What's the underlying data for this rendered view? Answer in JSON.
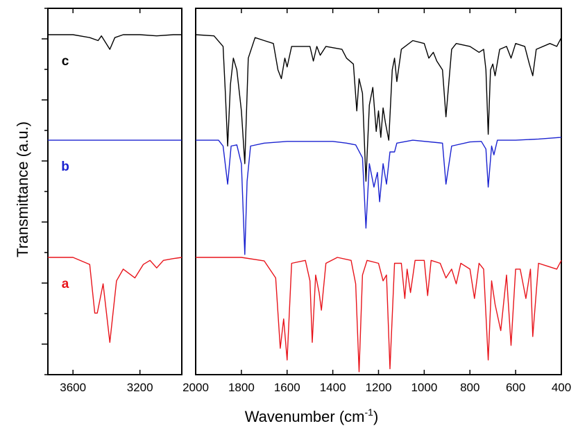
{
  "chart_data": {
    "type": "line",
    "xlabel": "Wavenumber (cm",
    "xlabel_sup": "-1",
    "xlabel_end": ")",
    "ylabel": "Transmittance (a.u.)",
    "panels": [
      {
        "name": "left",
        "xlim": [
          3750,
          2950
        ],
        "xticks": [
          3600,
          3200
        ]
      },
      {
        "name": "right",
        "xlim": [
          2000,
          400
        ],
        "xticks": [
          2000,
          1800,
          1600,
          1400,
          1200,
          1000,
          800,
          600,
          400
        ]
      }
    ],
    "series": [
      {
        "label": "a",
        "color": "#e8141b",
        "points": [
          [
            3750,
            0
          ],
          [
            3600,
            0
          ],
          [
            3500,
            -0.12
          ],
          [
            3470,
            -0.95
          ],
          [
            3455,
            -0.95
          ],
          [
            3420,
            -0.45
          ],
          [
            3380,
            -1.45
          ],
          [
            3340,
            -0.4
          ],
          [
            3300,
            -0.2
          ],
          [
            3230,
            -0.35
          ],
          [
            3180,
            -0.12
          ],
          [
            3140,
            -0.05
          ],
          [
            3100,
            -0.18
          ],
          [
            3060,
            -0.05
          ],
          [
            3000,
            -0.02
          ],
          [
            2950,
            0
          ],
          [
            2000,
            0
          ],
          [
            1800,
            0
          ],
          [
            1700,
            -0.06
          ],
          [
            1650,
            -0.35
          ],
          [
            1630,
            -1.55
          ],
          [
            1615,
            -1.05
          ],
          [
            1600,
            -1.75
          ],
          [
            1580,
            -0.1
          ],
          [
            1520,
            -0.05
          ],
          [
            1500,
            -0.4
          ],
          [
            1490,
            -1.45
          ],
          [
            1475,
            -0.3
          ],
          [
            1460,
            -0.6
          ],
          [
            1450,
            -0.9
          ],
          [
            1430,
            -0.1
          ],
          [
            1380,
            0
          ],
          [
            1320,
            -0.05
          ],
          [
            1300,
            -0.45
          ],
          [
            1285,
            -1.95
          ],
          [
            1270,
            -0.3
          ],
          [
            1250,
            -0.05
          ],
          [
            1200,
            -0.1
          ],
          [
            1180,
            -0.4
          ],
          [
            1165,
            -0.3
          ],
          [
            1150,
            -1.9
          ],
          [
            1130,
            -0.1
          ],
          [
            1100,
            -0.1
          ],
          [
            1085,
            -0.7
          ],
          [
            1075,
            -0.2
          ],
          [
            1060,
            -0.6
          ],
          [
            1040,
            -0.05
          ],
          [
            1000,
            -0.05
          ],
          [
            985,
            -0.65
          ],
          [
            970,
            -0.05
          ],
          [
            930,
            -0.1
          ],
          [
            905,
            -0.35
          ],
          [
            880,
            -0.2
          ],
          [
            860,
            -0.45
          ],
          [
            840,
            -0.1
          ],
          [
            800,
            -0.2
          ],
          [
            780,
            -0.7
          ],
          [
            760,
            -0.1
          ],
          [
            740,
            -0.2
          ],
          [
            720,
            -1.75
          ],
          [
            705,
            -0.4
          ],
          [
            690,
            -0.8
          ],
          [
            665,
            -1.25
          ],
          [
            640,
            -0.3
          ],
          [
            620,
            -1.5
          ],
          [
            600,
            -0.2
          ],
          [
            580,
            -0.2
          ],
          [
            555,
            -0.7
          ],
          [
            535,
            -0.2
          ],
          [
            525,
            -1.35
          ],
          [
            500,
            -0.1
          ],
          [
            460,
            -0.15
          ],
          [
            420,
            -0.2
          ],
          [
            400,
            -0.05
          ]
        ]
      },
      {
        "label": "b",
        "color": "#1a22d0",
        "points": [
          [
            3750,
            2.0
          ],
          [
            3600,
            2.0
          ],
          [
            3400,
            2.0
          ],
          [
            3200,
            2.0
          ],
          [
            3000,
            2.0
          ],
          [
            2950,
            2.0
          ],
          [
            2000,
            2.0
          ],
          [
            1900,
            2.0
          ],
          [
            1880,
            1.9
          ],
          [
            1860,
            1.25
          ],
          [
            1845,
            1.9
          ],
          [
            1820,
            1.92
          ],
          [
            1800,
            1.6
          ],
          [
            1785,
            0.05
          ],
          [
            1775,
            1.3
          ],
          [
            1760,
            1.9
          ],
          [
            1700,
            1.95
          ],
          [
            1600,
            1.98
          ],
          [
            1500,
            1.98
          ],
          [
            1400,
            1.98
          ],
          [
            1340,
            1.95
          ],
          [
            1300,
            1.92
          ],
          [
            1270,
            1.7
          ],
          [
            1255,
            0.5
          ],
          [
            1240,
            1.6
          ],
          [
            1220,
            1.2
          ],
          [
            1205,
            1.45
          ],
          [
            1195,
            0.95
          ],
          [
            1180,
            1.6
          ],
          [
            1165,
            1.25
          ],
          [
            1150,
            1.8
          ],
          [
            1130,
            1.8
          ],
          [
            1120,
            1.95
          ],
          [
            1050,
            2.0
          ],
          [
            920,
            1.95
          ],
          [
            905,
            1.25
          ],
          [
            880,
            1.9
          ],
          [
            800,
            1.97
          ],
          [
            750,
            1.98
          ],
          [
            730,
            1.85
          ],
          [
            720,
            1.2
          ],
          [
            705,
            1.9
          ],
          [
            695,
            1.75
          ],
          [
            680,
            2.0
          ],
          [
            600,
            2.0
          ],
          [
            500,
            2.02
          ],
          [
            400,
            2.05
          ]
        ]
      },
      {
        "label": "c",
        "color": "#000000",
        "points": [
          [
            3750,
            3.8
          ],
          [
            3600,
            3.8
          ],
          [
            3500,
            3.75
          ],
          [
            3450,
            3.7
          ],
          [
            3430,
            3.78
          ],
          [
            3380,
            3.55
          ],
          [
            3350,
            3.75
          ],
          [
            3300,
            3.8
          ],
          [
            3200,
            3.8
          ],
          [
            3100,
            3.78
          ],
          [
            3000,
            3.8
          ],
          [
            2950,
            3.8
          ],
          [
            2000,
            3.8
          ],
          [
            1920,
            3.78
          ],
          [
            1880,
            3.6
          ],
          [
            1870,
            2.8
          ],
          [
            1860,
            1.9
          ],
          [
            1848,
            2.95
          ],
          [
            1835,
            3.4
          ],
          [
            1820,
            3.2
          ],
          [
            1800,
            2.5
          ],
          [
            1785,
            1.6
          ],
          [
            1770,
            3.4
          ],
          [
            1740,
            3.75
          ],
          [
            1700,
            3.7
          ],
          [
            1660,
            3.65
          ],
          [
            1640,
            3.2
          ],
          [
            1625,
            3.05
          ],
          [
            1610,
            3.4
          ],
          [
            1600,
            3.25
          ],
          [
            1580,
            3.6
          ],
          [
            1500,
            3.6
          ],
          [
            1485,
            3.35
          ],
          [
            1470,
            3.6
          ],
          [
            1455,
            3.45
          ],
          [
            1430,
            3.6
          ],
          [
            1360,
            3.55
          ],
          [
            1340,
            3.4
          ],
          [
            1310,
            3.3
          ],
          [
            1295,
            2.5
          ],
          [
            1285,
            3.05
          ],
          [
            1270,
            2.8
          ],
          [
            1255,
            1.3
          ],
          [
            1240,
            2.6
          ],
          [
            1225,
            2.9
          ],
          [
            1210,
            2.15
          ],
          [
            1200,
            2.5
          ],
          [
            1190,
            2.05
          ],
          [
            1180,
            2.55
          ],
          [
            1170,
            2.3
          ],
          [
            1155,
            2.0
          ],
          [
            1140,
            3.2
          ],
          [
            1130,
            3.4
          ],
          [
            1120,
            3.0
          ],
          [
            1100,
            3.55
          ],
          [
            1050,
            3.7
          ],
          [
            1000,
            3.65
          ],
          [
            980,
            3.4
          ],
          [
            960,
            3.5
          ],
          [
            945,
            3.35
          ],
          [
            920,
            3.2
          ],
          [
            905,
            2.4
          ],
          [
            880,
            3.55
          ],
          [
            860,
            3.65
          ],
          [
            800,
            3.6
          ],
          [
            760,
            3.5
          ],
          [
            740,
            3.55
          ],
          [
            730,
            3.2
          ],
          [
            720,
            2.1
          ],
          [
            710,
            3.2
          ],
          [
            700,
            3.3
          ],
          [
            690,
            3.1
          ],
          [
            670,
            3.55
          ],
          [
            640,
            3.6
          ],
          [
            620,
            3.4
          ],
          [
            600,
            3.65
          ],
          [
            560,
            3.6
          ],
          [
            540,
            3.3
          ],
          [
            525,
            3.1
          ],
          [
            510,
            3.55
          ],
          [
            450,
            3.65
          ],
          [
            420,
            3.6
          ],
          [
            400,
            3.75
          ]
        ]
      }
    ]
  }
}
